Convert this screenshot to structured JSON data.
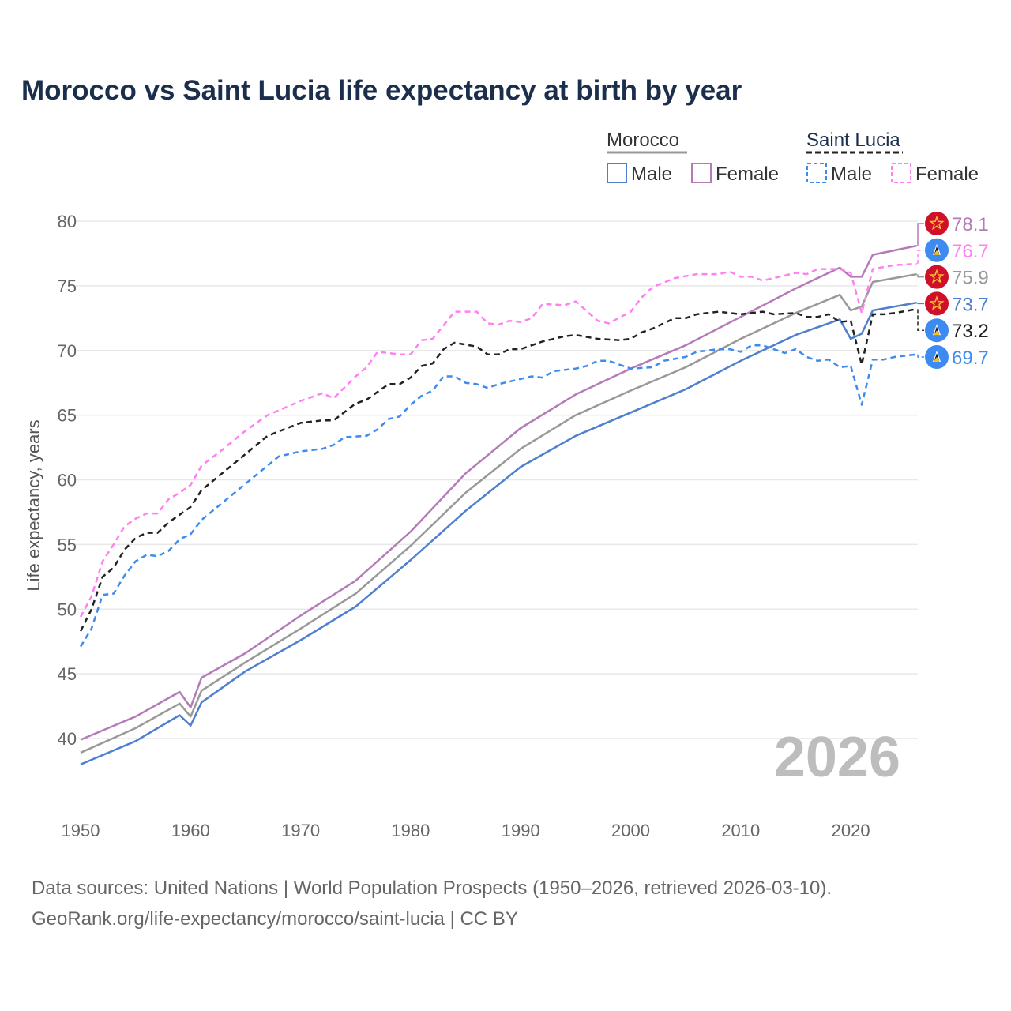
{
  "title": "Morocco vs Saint Lucia life expectancy at birth by year",
  "footer": {
    "line1": "Data sources: United Nations | World Population Prospects (1950–2026, retrieved 2026-03-10).",
    "line2": "GeoRank.org/life-expectancy/morocco/saint-lucia | CC BY"
  },
  "chart_data": {
    "type": "line",
    "title": "Morocco vs Saint Lucia life expectancy at birth by year",
    "xlabel": "",
    "ylabel": "Life expectancy, years",
    "xlim": [
      1950,
      2026
    ],
    "ylim": [
      37.5,
      80
    ],
    "xticks": [
      1950,
      1960,
      1970,
      1980,
      1990,
      2000,
      2010,
      2020
    ],
    "yticks": [
      40,
      45,
      50,
      55,
      60,
      65,
      70,
      75,
      80
    ],
    "grid": true,
    "watermark": "2026",
    "legend": {
      "placement": "top-right",
      "groups": [
        {
          "name": "Morocco",
          "entries": [
            "Male",
            "Female"
          ]
        },
        {
          "name": "Saint Lucia",
          "entries": [
            "Male",
            "Female"
          ]
        }
      ]
    },
    "series": [
      {
        "name": "Morocco Male",
        "country": "Morocco",
        "color": "#4f7fcf",
        "dashed": false,
        "end_label": "73.7",
        "flag": "morocco",
        "x": [
          1950,
          1955,
          1959,
          1960,
          1961,
          1965,
          1970,
          1975,
          1980,
          1985,
          1990,
          1995,
          2000,
          2005,
          2010,
          2015,
          2019,
          2020,
          2021,
          2022,
          2026
        ],
        "y": [
          38.0,
          39.8,
          41.8,
          41.0,
          42.8,
          45.2,
          47.6,
          50.2,
          53.8,
          57.6,
          61.0,
          63.4,
          65.2,
          67.0,
          69.2,
          71.2,
          72.4,
          70.9,
          71.3,
          73.1,
          73.7
        ]
      },
      {
        "name": "Morocco Female",
        "country": "Morocco",
        "color": "#b57ab8",
        "dashed": false,
        "end_label": "78.1",
        "flag": "morocco",
        "x": [
          1950,
          1955,
          1959,
          1960,
          1961,
          1965,
          1970,
          1975,
          1980,
          1985,
          1990,
          1995,
          2000,
          2005,
          2010,
          2015,
          2019,
          2020,
          2021,
          2022,
          2026
        ],
        "y": [
          39.9,
          41.7,
          43.6,
          42.4,
          44.7,
          46.6,
          49.5,
          52.2,
          56.0,
          60.5,
          64.0,
          66.6,
          68.6,
          70.4,
          72.6,
          74.8,
          76.4,
          75.7,
          75.7,
          77.4,
          78.1
        ]
      },
      {
        "name": "Morocco Total",
        "country": "Morocco",
        "color": "#999999",
        "dashed": false,
        "end_label": "75.9",
        "flag": "morocco",
        "x": [
          1950,
          1955,
          1959,
          1960,
          1961,
          1965,
          1970,
          1975,
          1980,
          1985,
          1990,
          1995,
          2000,
          2005,
          2010,
          2015,
          2019,
          2020,
          2021,
          2022,
          2026
        ],
        "y": [
          38.9,
          40.8,
          42.7,
          41.7,
          43.7,
          45.9,
          48.5,
          51.2,
          54.9,
          59.0,
          62.4,
          65.0,
          66.9,
          68.7,
          70.9,
          72.9,
          74.3,
          73.1,
          73.4,
          75.3,
          75.9
        ]
      },
      {
        "name": "Saint Lucia Male",
        "country": "Saint Lucia",
        "color": "#3d8bf0",
        "dashed": true,
        "end_label": "69.7",
        "flag": "saint-lucia",
        "x": [
          1950,
          1951,
          1952,
          1953,
          1954,
          1955,
          1956,
          1957,
          1958,
          1959,
          1960,
          1961,
          1963,
          1965,
          1967,
          1968,
          1970,
          1972,
          1973,
          1974,
          1976,
          1977,
          1978,
          1979,
          1980,
          1981,
          1982,
          1983,
          1984,
          1985,
          1986,
          1987,
          1988,
          1990,
          1991,
          1992,
          1993,
          1995,
          1996,
          1997,
          1998,
          1999,
          2000,
          2002,
          2003,
          2005,
          2006,
          2008,
          2009,
          2010,
          2011,
          2012,
          2013,
          2014,
          2015,
          2016,
          2017,
          2018,
          2019,
          2020,
          2021,
          2022,
          2023,
          2024,
          2026
        ],
        "y": [
          47.1,
          48.5,
          51.1,
          51.2,
          52.6,
          53.7,
          54.2,
          54.1,
          54.5,
          55.4,
          55.8,
          56.9,
          58.3,
          59.7,
          61.1,
          61.8,
          62.2,
          62.4,
          62.7,
          63.3,
          63.4,
          63.9,
          64.7,
          64.9,
          65.8,
          66.5,
          66.9,
          68.0,
          68.0,
          67.5,
          67.4,
          67.1,
          67.4,
          67.8,
          68.0,
          67.9,
          68.4,
          68.6,
          68.8,
          69.2,
          69.2,
          68.9,
          68.6,
          68.7,
          69.2,
          69.5,
          69.9,
          70.1,
          70.1,
          69.9,
          70.4,
          70.4,
          70.1,
          69.8,
          70.1,
          69.5,
          69.2,
          69.3,
          68.7,
          68.8,
          65.8,
          69.3,
          69.3,
          69.5,
          69.7
        ]
      },
      {
        "name": "Saint Lucia Female",
        "country": "Saint Lucia",
        "color": "#ff80f0",
        "dashed": true,
        "end_label": "76.7",
        "flag": "saint-lucia",
        "x": [
          1950,
          1951,
          1952,
          1953,
          1954,
          1955,
          1956,
          1957,
          1958,
          1959,
          1960,
          1961,
          1963,
          1965,
          1967,
          1970,
          1972,
          1973,
          1975,
          1976,
          1977,
          1979,
          1980,
          1981,
          1982,
          1984,
          1985,
          1986,
          1987,
          1988,
          1989,
          1990,
          1991,
          1992,
          1994,
          1995,
          1997,
          1998,
          2000,
          2001,
          2002,
          2004,
          2006,
          2008,
          2009,
          2010,
          2011,
          2012,
          2014,
          2015,
          2016,
          2017,
          2019,
          2020,
          2021,
          2022,
          2024,
          2026
        ],
        "y": [
          49.4,
          51.0,
          53.7,
          55.0,
          56.4,
          57.0,
          57.4,
          57.4,
          58.5,
          59.0,
          59.6,
          61.1,
          62.4,
          63.8,
          65.0,
          66.1,
          66.7,
          66.3,
          68.0,
          68.7,
          69.9,
          69.7,
          69.7,
          70.8,
          70.9,
          73.0,
          73.0,
          73.0,
          72.1,
          72.0,
          72.3,
          72.2,
          72.5,
          73.6,
          73.5,
          73.8,
          72.3,
          72.1,
          73.0,
          74.1,
          74.9,
          75.6,
          75.9,
          75.9,
          76.1,
          75.7,
          75.7,
          75.4,
          75.8,
          76.0,
          75.9,
          76.3,
          76.3,
          76.0,
          72.9,
          76.3,
          76.6,
          76.7
        ]
      },
      {
        "name": "Saint Lucia Total",
        "country": "Saint Lucia",
        "color": "#222222",
        "dashed": true,
        "end_label": "73.2",
        "flag": "saint-lucia",
        "x": [
          1950,
          1951,
          1952,
          1953,
          1954,
          1955,
          1956,
          1957,
          1958,
          1959,
          1960,
          1961,
          1963,
          1965,
          1967,
          1970,
          1972,
          1973,
          1975,
          1976,
          1978,
          1979,
          1980,
          1981,
          1982,
          1983,
          1984,
          1986,
          1987,
          1988,
          1989,
          1990,
          1992,
          1994,
          1995,
          1997,
          1999,
          2000,
          2001,
          2002,
          2004,
          2005,
          2006,
          2008,
          2010,
          2012,
          2013,
          2015,
          2016,
          2017,
          2018,
          2019,
          2020,
          2021,
          2022,
          2023,
          2024,
          2026
        ],
        "y": [
          48.3,
          50.0,
          52.5,
          53.2,
          54.6,
          55.5,
          55.9,
          55.9,
          56.7,
          57.3,
          57.9,
          59.2,
          60.6,
          62.0,
          63.4,
          64.4,
          64.6,
          64.6,
          65.9,
          66.2,
          67.4,
          67.4,
          67.9,
          68.8,
          69.0,
          70.1,
          70.6,
          70.3,
          69.7,
          69.7,
          70.1,
          70.1,
          70.7,
          71.1,
          71.2,
          70.9,
          70.8,
          70.9,
          71.4,
          71.7,
          72.5,
          72.5,
          72.8,
          73.0,
          72.8,
          73.0,
          72.8,
          72.9,
          72.6,
          72.6,
          72.8,
          72.2,
          72.3,
          68.9,
          72.8,
          72.8,
          72.9,
          73.2
        ]
      }
    ]
  }
}
